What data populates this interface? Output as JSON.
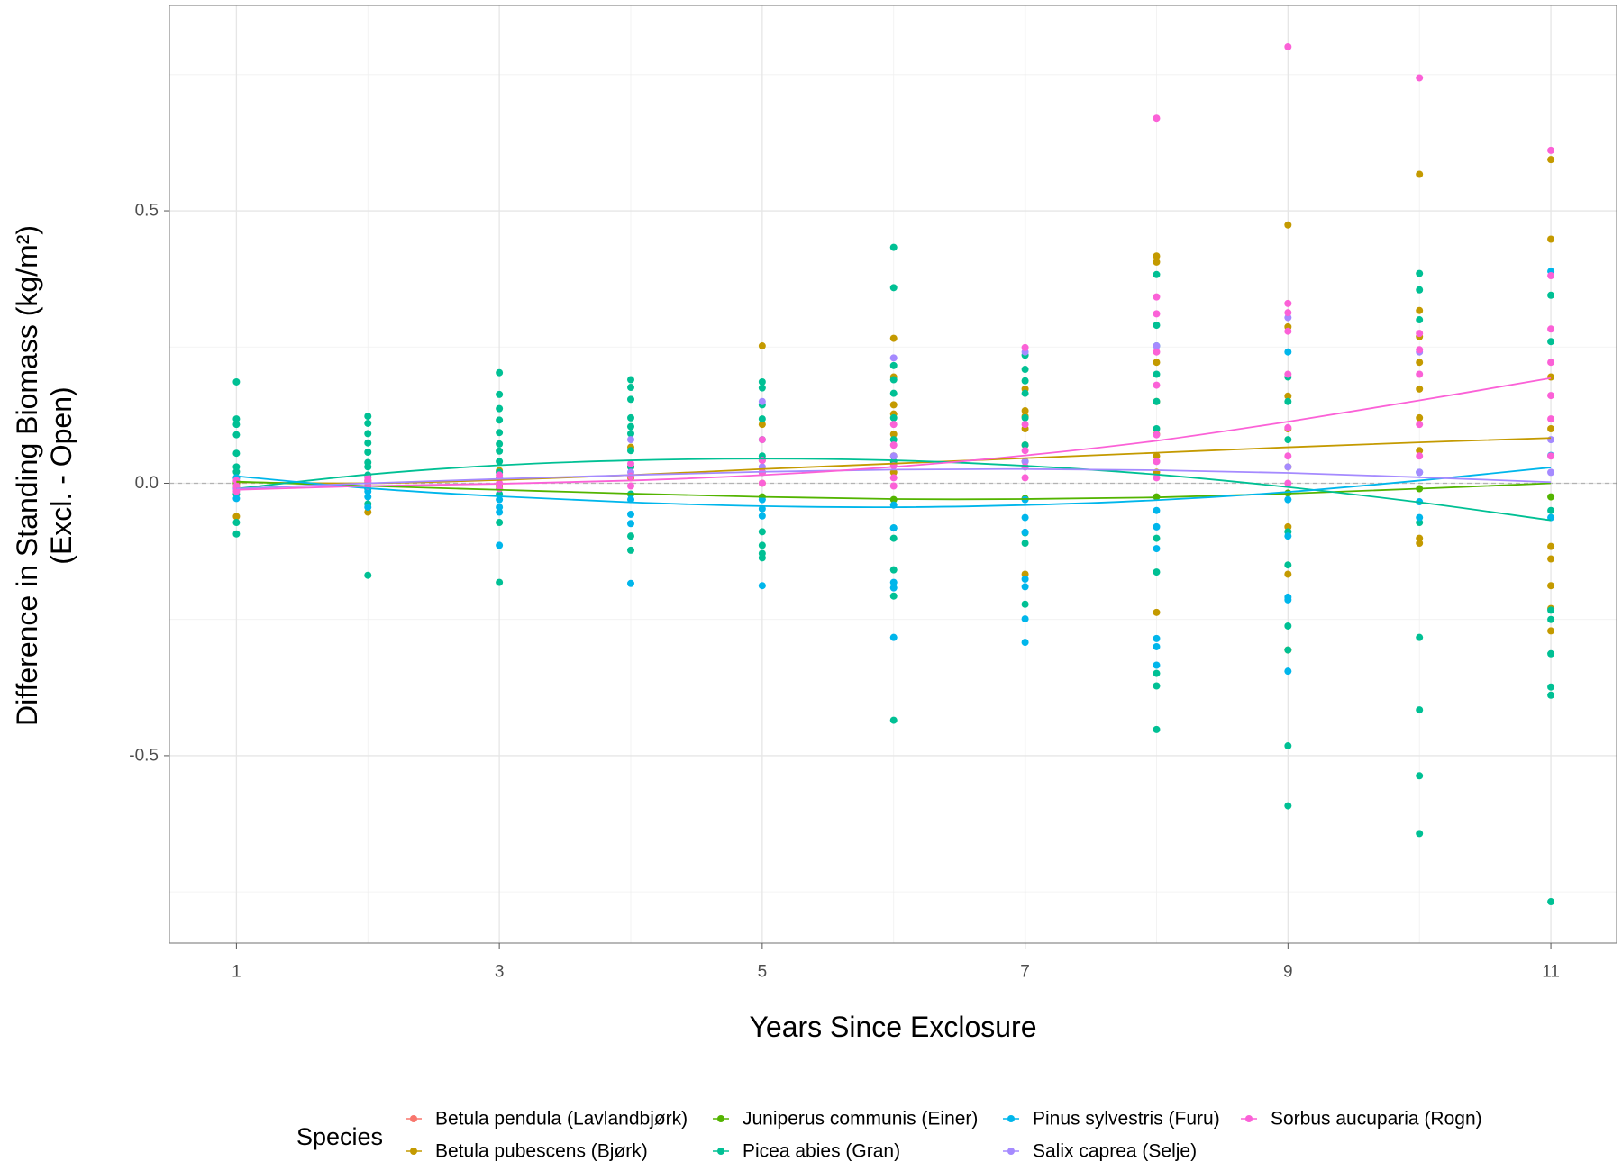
{
  "chart_data": {
    "type": "scatter",
    "title": "",
    "xlabel": "Years Since Exclosure",
    "ylabel": [
      "Difference in Standing Biomass (kg/m²)",
      "(Excl. - Open)"
    ],
    "xlim": [
      0.49,
      11.5
    ],
    "ylim": [
      -0.844,
      0.877
    ],
    "xticks": [
      1,
      3,
      5,
      7,
      9,
      11
    ],
    "yticks": [
      -0.5,
      0.0,
      0.5
    ],
    "ytick_labels": [
      "-0.5",
      "0.0",
      "0.5"
    ],
    "grid": true,
    "reference_line": {
      "y": 0,
      "style": "dashed",
      "color": "#b3b3b3"
    },
    "legend_title": "Species",
    "legend_position": "bottom",
    "series": [
      {
        "name": "Betula pendula (Lavlandbjørk)",
        "color": "#F8766D",
        "points": [
          {
            "x": 1,
            "y": [
              -0.005,
              0.003
            ]
          },
          {
            "x": 2,
            "y": [
              0.002
            ]
          }
        ]
      },
      {
        "name": "Betula pubescens (Bjørk)",
        "color": "#C49A00",
        "points": [
          {
            "x": 1,
            "y": [
              -0.061,
              -0.008,
              0.0
            ]
          },
          {
            "x": 2,
            "y": [
              -0.053,
              -0.01,
              0.005
            ]
          },
          {
            "x": 3,
            "y": [
              0.023,
              0.01,
              -0.005
            ]
          },
          {
            "x": 4,
            "y": [
              0.066,
              0.03,
              0.01
            ]
          },
          {
            "x": 5,
            "y": [
              0.252,
              0.108,
              0.042,
              0.02,
              0.0
            ]
          },
          {
            "x": 6,
            "y": [
              0.266,
              0.195,
              0.144,
              0.127,
              0.09,
              0.05,
              0.02
            ]
          },
          {
            "x": 7,
            "y": [
              0.173,
              0.133,
              0.123,
              0.1,
              0.07,
              0.04,
              -0.167
            ]
          },
          {
            "x": 8,
            "y": [
              0.417,
              0.406,
              0.222,
              0.15,
              0.09,
              0.05,
              0.02,
              -0.237
            ]
          },
          {
            "x": 9,
            "y": [
              0.474,
              0.287,
              0.16,
              0.1,
              0.03,
              -0.08,
              -0.167,
              -0.306
            ]
          },
          {
            "x": 10,
            "y": [
              0.567,
              0.317,
              0.269,
              0.222,
              0.173,
              0.12,
              0.06,
              -0.101,
              -0.11
            ]
          },
          {
            "x": 11,
            "y": [
              0.594,
              0.448,
              0.195,
              0.1,
              -0.116,
              -0.139,
              -0.188,
              -0.23,
              -0.271
            ]
          }
        ],
        "smooth": {
          "x": [
            1,
            2,
            3,
            4,
            5,
            6,
            7,
            8,
            9,
            10,
            11
          ],
          "y": [
            0.002,
            0.0,
            0.006,
            0.015,
            0.026,
            0.036,
            0.046,
            0.056,
            0.066,
            0.075,
            0.083
          ]
        }
      },
      {
        "name": "Juniperus communis (Einer)",
        "color": "#53B400",
        "points": [
          {
            "x": 1,
            "y": [
              0.0
            ]
          },
          {
            "x": 2,
            "y": [
              -0.005
            ]
          },
          {
            "x": 3,
            "y": [
              -0.01
            ]
          },
          {
            "x": 4,
            "y": [
              -0.02
            ]
          },
          {
            "x": 5,
            "y": [
              -0.025
            ]
          },
          {
            "x": 6,
            "y": [
              -0.03
            ]
          },
          {
            "x": 7,
            "y": [
              -0.028
            ]
          },
          {
            "x": 8,
            "y": [
              -0.025
            ]
          },
          {
            "x": 9,
            "y": [
              -0.018
            ]
          },
          {
            "x": 10,
            "y": [
              -0.01
            ]
          },
          {
            "x": 11,
            "y": [
              -0.025
            ]
          }
        ],
        "smooth": {
          "x": [
            1,
            2,
            3,
            4,
            5,
            6,
            7,
            8,
            9,
            10,
            11
          ],
          "y": [
            0.003,
            -0.005,
            -0.012,
            -0.019,
            -0.025,
            -0.029,
            -0.029,
            -0.026,
            -0.019,
            -0.01,
            0.0
          ]
        }
      },
      {
        "name": "Picea abies (Gran)",
        "color": "#00C094",
        "points": [
          {
            "x": 1,
            "y": [
              0.186,
              0.118,
              0.108,
              0.089,
              0.055,
              0.03,
              0.021,
              0.01,
              -0.02,
              -0.072,
              -0.093
            ]
          },
          {
            "x": 2,
            "y": [
              0.123,
              0.11,
              0.091,
              0.074,
              0.057,
              0.038,
              0.03,
              0.015,
              -0.01,
              -0.038,
              -0.169
            ]
          },
          {
            "x": 3,
            "y": [
              0.203,
              0.163,
              0.137,
              0.116,
              0.093,
              0.072,
              0.059,
              0.04,
              0.02,
              -0.02,
              -0.072,
              -0.182
            ]
          },
          {
            "x": 4,
            "y": [
              0.19,
              0.176,
              0.154,
              0.12,
              0.104,
              0.091,
              0.06,
              0.03,
              -0.02,
              -0.097,
              -0.123
            ]
          },
          {
            "x": 5,
            "y": [
              0.186,
              0.175,
              0.144,
              0.118,
              0.08,
              0.05,
              0.02,
              -0.089,
              -0.114,
              -0.129,
              -0.137
            ]
          },
          {
            "x": 6,
            "y": [
              0.433,
              0.359,
              0.216,
              0.19,
              0.165,
              0.12,
              0.08,
              0.04,
              -0.082,
              -0.101,
              -0.159,
              -0.207,
              -0.435
            ]
          },
          {
            "x": 7,
            "y": [
              0.235,
              0.209,
              0.188,
              0.165,
              0.12,
              0.07,
              0.03,
              -0.091,
              -0.11,
              -0.222
            ]
          },
          {
            "x": 8,
            "y": [
              0.383,
              0.29,
              0.252,
              0.2,
              0.15,
              0.1,
              -0.101,
              -0.163,
              -0.349,
              -0.372,
              -0.452
            ]
          },
          {
            "x": 9,
            "y": [
              0.195,
              0.15,
              0.08,
              -0.089,
              -0.15,
              -0.262,
              -0.306,
              -0.482,
              -0.592
            ]
          },
          {
            "x": 10,
            "y": [
              0.385,
              0.355,
              0.3,
              -0.072,
              -0.283,
              -0.416,
              -0.537,
              -0.643
            ]
          },
          {
            "x": 11,
            "y": [
              0.345,
              0.26,
              -0.05,
              -0.233,
              -0.25,
              -0.313,
              -0.374,
              -0.389,
              -0.768
            ]
          }
        ],
        "smooth": {
          "x": [
            1,
            2,
            3,
            4,
            5,
            6,
            7,
            8,
            9,
            10,
            11
          ],
          "y": [
            -0.01,
            0.016,
            0.033,
            0.042,
            0.045,
            0.042,
            0.032,
            0.016,
            -0.007,
            -0.035,
            -0.068
          ]
        }
      },
      {
        "name": "Pinus sylvestris (Furu)",
        "color": "#00B6EB",
        "points": [
          {
            "x": 1,
            "y": [
              0.01,
              -0.01,
              -0.028
            ]
          },
          {
            "x": 2,
            "y": [
              -0.015,
              -0.025,
              -0.044
            ]
          },
          {
            "x": 3,
            "y": [
              -0.03,
              -0.044,
              -0.053,
              -0.114
            ]
          },
          {
            "x": 4,
            "y": [
              -0.03,
              -0.057,
              -0.074,
              -0.184
            ]
          },
          {
            "x": 5,
            "y": [
              -0.03,
              -0.047,
              -0.06,
              -0.188
            ]
          },
          {
            "x": 6,
            "y": [
              -0.04,
              -0.082,
              -0.182,
              -0.192,
              -0.283
            ]
          },
          {
            "x": 7,
            "y": [
              -0.03,
              -0.063,
              -0.09,
              -0.176,
              -0.19,
              -0.249,
              -0.292
            ]
          },
          {
            "x": 8,
            "y": [
              -0.05,
              -0.08,
              -0.12,
              -0.285,
              -0.3,
              -0.334
            ]
          },
          {
            "x": 9,
            "y": [
              0.241,
              -0.03,
              -0.097,
              -0.209,
              -0.214,
              -0.345
            ]
          },
          {
            "x": 10,
            "y": [
              0.02,
              -0.034,
              -0.063
            ]
          },
          {
            "x": 11,
            "y": [
              0.389,
              0.051,
              -0.063
            ]
          }
        ],
        "smooth": {
          "x": [
            1,
            2,
            3,
            4,
            5,
            6,
            7,
            8,
            9,
            10,
            11
          ],
          "y": [
            0.013,
            -0.009,
            -0.024,
            -0.035,
            -0.042,
            -0.044,
            -0.04,
            -0.031,
            -0.016,
            0.005,
            0.029
          ]
        }
      },
      {
        "name": "Salix caprea (Selje)",
        "color": "#A58AFF",
        "points": [
          {
            "x": 1,
            "y": [
              -0.01
            ]
          },
          {
            "x": 2,
            "y": [
              0.0
            ]
          },
          {
            "x": 3,
            "y": [
              0.01
            ]
          },
          {
            "x": 4,
            "y": [
              0.08,
              0.02
            ]
          },
          {
            "x": 5,
            "y": [
              0.15,
              0.03
            ]
          },
          {
            "x": 6,
            "y": [
              0.23,
              0.05
            ]
          },
          {
            "x": 7,
            "y": [
              0.241,
              0.04
            ]
          },
          {
            "x": 8,
            "y": [
              0.252,
              0.04
            ]
          },
          {
            "x": 9,
            "y": [
              0.304,
              0.03
            ]
          },
          {
            "x": 10,
            "y": [
              0.241,
              0.02
            ]
          },
          {
            "x": 11,
            "y": [
              0.08,
              0.02
            ]
          }
        ],
        "smooth": {
          "x": [
            1,
            2,
            3,
            4,
            5,
            6,
            7,
            8,
            9,
            10,
            11
          ],
          "y": [
            -0.01,
            0.0,
            0.008,
            0.015,
            0.021,
            0.025,
            0.026,
            0.024,
            0.019,
            0.011,
            0.002
          ]
        }
      },
      {
        "name": "Sorbus aucuparia (Rogn)",
        "color": "#FB61D7",
        "points": [
          {
            "x": 1,
            "y": [
              -0.005,
              0.005,
              -0.015
            ]
          },
          {
            "x": 2,
            "y": [
              0.005,
              -0.005,
              0.01
            ]
          },
          {
            "x": 3,
            "y": [
              0.015,
              0.0,
              -0.01
            ]
          },
          {
            "x": 4,
            "y": [
              0.036,
              0.013,
              -0.005
            ]
          },
          {
            "x": 5,
            "y": [
              0.08,
              0.042,
              0.02,
              0.0
            ]
          },
          {
            "x": 6,
            "y": [
              0.108,
              0.07,
              0.032,
              0.01,
              -0.005
            ]
          },
          {
            "x": 7,
            "y": [
              0.249,
              0.108,
              0.06,
              0.03,
              0.01
            ]
          },
          {
            "x": 8,
            "y": [
              0.67,
              0.342,
              0.311,
              0.241,
              0.18,
              0.089,
              0.04,
              0.01
            ]
          },
          {
            "x": 9,
            "y": [
              0.801,
              0.33,
              0.313,
              0.279,
              0.2,
              0.102,
              0.05,
              0.0
            ]
          },
          {
            "x": 10,
            "y": [
              0.744,
              0.275,
              0.245,
              0.2,
              0.108,
              0.05
            ]
          },
          {
            "x": 11,
            "y": [
              0.611,
              0.381,
              0.283,
              0.222,
              0.161,
              0.118,
              0.05
            ]
          }
        ],
        "smooth": {
          "x": [
            1,
            2,
            3,
            4,
            5,
            6,
            7,
            8,
            9,
            10,
            11
          ],
          "y": [
            -0.012,
            -0.005,
            -0.001,
            0.005,
            0.015,
            0.03,
            0.051,
            0.078,
            0.113,
            0.152,
            0.193
          ]
        }
      }
    ]
  }
}
